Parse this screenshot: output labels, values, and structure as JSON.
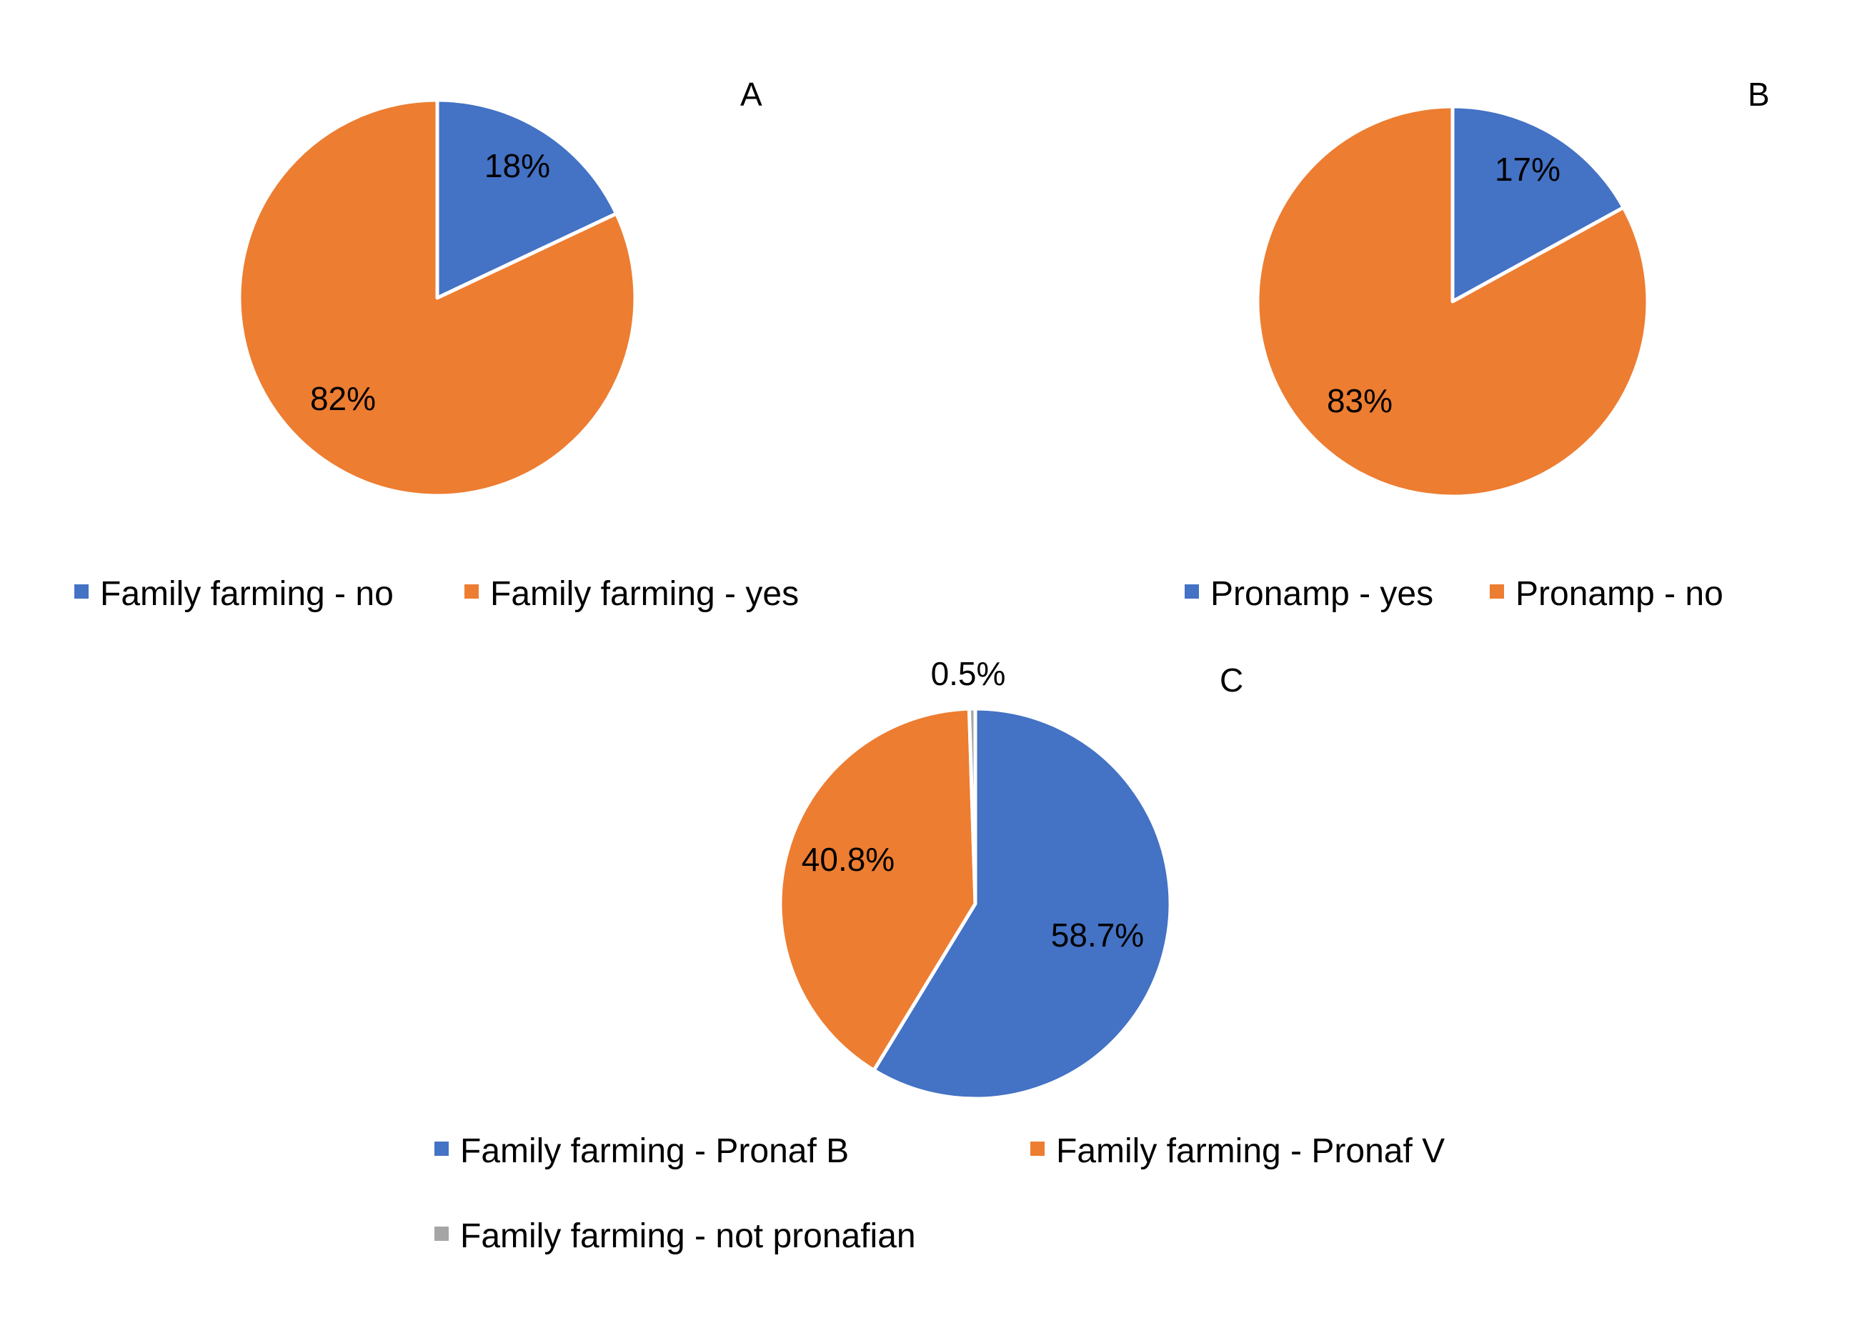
{
  "colors": {
    "blue": "#4472C4",
    "orange": "#ED7D31",
    "gray": "#A5A5A5",
    "slice_border": "#FFFFFF"
  },
  "chart_data": [
    {
      "type": "pie",
      "panel": "A",
      "series": [
        {
          "name": "Family farming - no",
          "value": 18,
          "label": "18%",
          "color": "#4472C4"
        },
        {
          "name": "Family farming - yes",
          "value": 82,
          "label": "82%",
          "color": "#ED7D31"
        }
      ],
      "start_angle_deg": 0,
      "direction": "clockwise",
      "legend_position": "bottom"
    },
    {
      "type": "pie",
      "panel": "B",
      "series": [
        {
          "name": "Pronamp - yes",
          "value": 17,
          "label": "17%",
          "color": "#4472C4"
        },
        {
          "name": "Pronamp - no",
          "value": 83,
          "label": "83%",
          "color": "#ED7D31"
        }
      ],
      "start_angle_deg": 0,
      "direction": "clockwise",
      "legend_position": "bottom"
    },
    {
      "type": "pie",
      "panel": "C",
      "series": [
        {
          "name": "Family farming - Pronaf B",
          "value": 58.7,
          "label": "58.7%",
          "color": "#4472C4"
        },
        {
          "name": "Family farming - Pronaf V",
          "value": 40.8,
          "label": "40.8%",
          "color": "#ED7D31"
        },
        {
          "name": "Family farming - not pronafian",
          "value": 0.5,
          "label": "0.5%",
          "color": "#A5A5A5"
        }
      ],
      "start_angle_deg": 0,
      "direction": "clockwise",
      "legend_position": "bottom"
    }
  ]
}
